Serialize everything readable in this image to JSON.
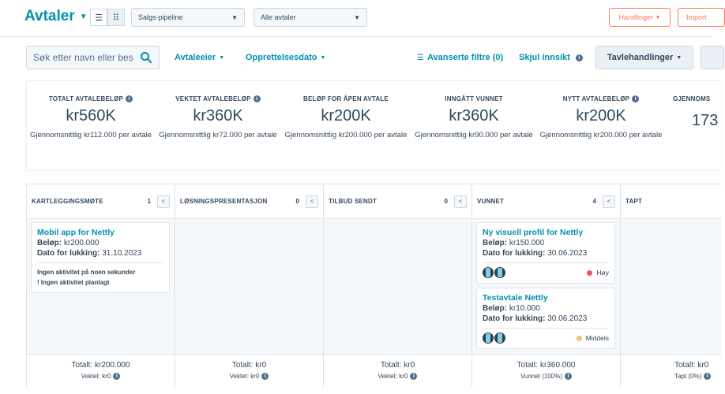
{
  "header": {
    "title": "Avtaler",
    "pipeline_select": "Salgs-pipeline",
    "deal_filter_select": "Alle avtaler",
    "actions_button": "Handlinger",
    "import_button": "Import"
  },
  "filters": {
    "search_placeholder": "Søk etter navn eller bes",
    "owner": "Avtaleeier",
    "created_date": "Opprettelsesdato",
    "advanced_filters": "Avanserte filtre (0)",
    "hide_insight": "Skjul innsikt",
    "board_actions": "Tavlehandlinger"
  },
  "summary": [
    {
      "label": "TOTALT AVTALEBELØP",
      "value": "kr560K",
      "sub": "Gjennomsnittlig kr112.000 per avtale",
      "info": true
    },
    {
      "label": "VEKTET AVTALEBELØP",
      "value": "kr360K",
      "sub": "Gjennomsnittlig kr72.000 per avtale",
      "info": true
    },
    {
      "label": "BELØP FOR ÅPEN AVTALE",
      "value": "kr200K",
      "sub": "Gjennomsnittlig kr200.000 per avtale",
      "info": false
    },
    {
      "label": "INNGÅTT VUNNET",
      "value": "kr360K",
      "sub": "Gjennomsnittlig kr90.000 per avtale",
      "info": false
    },
    {
      "label": "NYTT AVTALEBELØP",
      "value": "kr200K",
      "sub": "Gjennomsnittlig kr200.000 per avtale",
      "info": true
    },
    {
      "label": "GJENNOMS",
      "value": "173",
      "sub": "",
      "info": false
    }
  ],
  "columns": [
    {
      "name": "KARTLEGGINGSMØTE",
      "count": "1",
      "total": "Totalt: kr200.000",
      "sub": "Vektet: kr0"
    },
    {
      "name": "LØSNINGSPRESENTASJON",
      "count": "0",
      "total": "Totalt: kr0",
      "sub": "Vektet: kr0"
    },
    {
      "name": "TILBUD SENDT",
      "count": "0",
      "total": "Totalt: kr0",
      "sub": "Vektet: kr0"
    },
    {
      "name": "VUNNET",
      "count": "4",
      "total": "Totalt: kr360.000",
      "sub": "Vunnet (100%)"
    },
    {
      "name": "TAPT",
      "count": "",
      "total": "Totalt: kr0",
      "sub": "Tapt (0%)"
    }
  ],
  "cards": {
    "mobile_app": {
      "title": "Mobil app for Nettly",
      "amount_label": "Beløp:",
      "amount": "kr200.000",
      "close_label": "Dato for lukking:",
      "close_date": "31.10.2023",
      "activity1": "Ingen aktivitet på noen sekunder",
      "activity2": "! Ingen aktivitet planlagt"
    },
    "visual_profile": {
      "title": "Ny visuell profil for Nettly",
      "amount_label": "Beløp:",
      "amount": "kr150.000",
      "close_label": "Dato for lukking:",
      "close_date": "30.06.2023",
      "priority": "Høy",
      "priority_color": "#f2545b"
    },
    "test_deal": {
      "title": "Testavtale Nettly",
      "amount_label": "Beløp:",
      "amount": "kr10.000",
      "close_label": "Dato for lukking:",
      "close_date": "30.06.2023",
      "priority": "Middels",
      "priority_color": "#f5c26b"
    }
  },
  "colors": {
    "accent": "#0091ae",
    "action": "#ff7a59",
    "text": "#33475b"
  }
}
